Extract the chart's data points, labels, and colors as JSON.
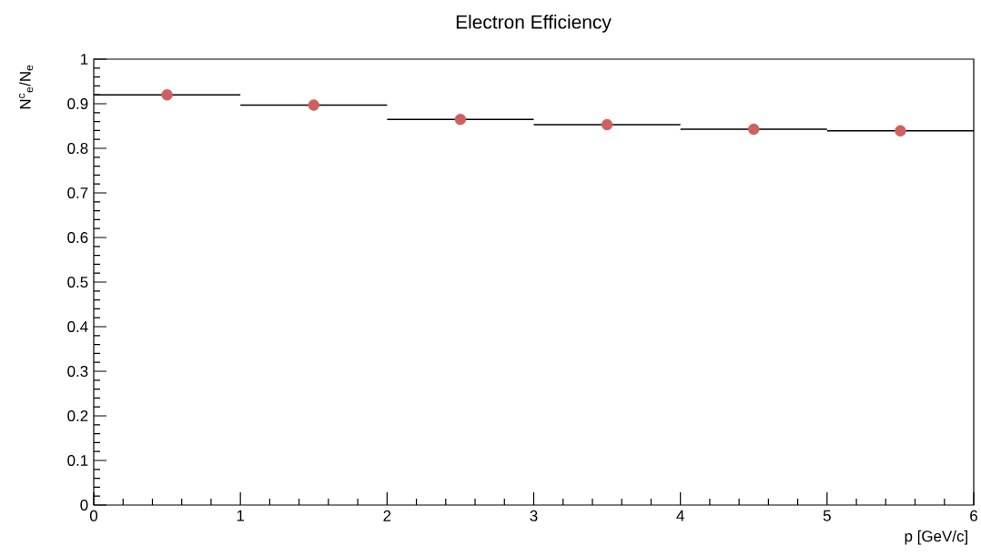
{
  "chart_data": {
    "type": "scatter",
    "title": "Electron Efficiency",
    "xlabel": "p [GeV/c]",
    "ylabel": "N$^{c}$$_{e}$/N$_{e}$",
    "x": [
      0.5,
      1.5,
      2.5,
      3.5,
      4.5,
      5.5
    ],
    "values": [
      0.92,
      0.897,
      0.865,
      0.853,
      0.843,
      0.839
    ],
    "xerrors": [
      0.5,
      0.5,
      0.5,
      0.5,
      0.5,
      0.5
    ],
    "color": "#d06060",
    "marker": "circle",
    "xlim": [
      0,
      6
    ],
    "ylim": [
      0,
      1
    ],
    "xticks": [
      0,
      1,
      2,
      3,
      4,
      5,
      6
    ],
    "yticks": [
      0,
      0.1,
      0.2,
      0.3,
      0.4,
      0.5,
      0.6,
      0.7,
      0.8,
      0.9,
      1
    ],
    "grid": false
  }
}
